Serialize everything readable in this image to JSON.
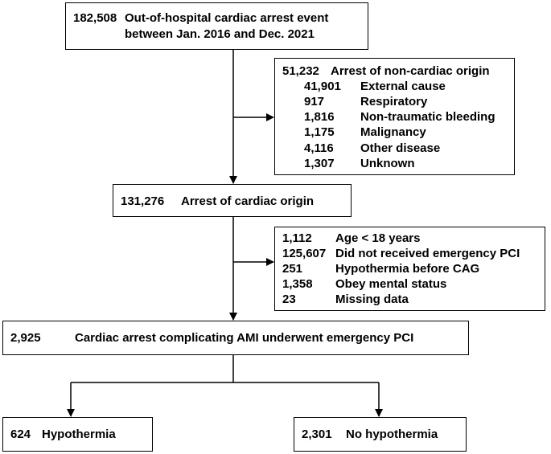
{
  "box_total": {
    "count": "182,508",
    "line1": "Out-of-hospital cardiac arrest event",
    "line2": "between Jan. 2016 and Dec. 2021"
  },
  "box_noncardiac": {
    "count": "51,232",
    "label": "Arrest of non-cardiac origin",
    "items": [
      {
        "count": "41,901",
        "label": "External cause"
      },
      {
        "count": "917",
        "label": "Respiratory"
      },
      {
        "count": "1,816",
        "label": "Non-traumatic bleeding"
      },
      {
        "count": "1,175",
        "label": "Malignancy"
      },
      {
        "count": "4,116",
        "label": "Other disease"
      },
      {
        "count": "1,307",
        "label": "Unknown"
      }
    ]
  },
  "box_cardiac": {
    "count": "131,276",
    "label": "Arrest of cardiac origin"
  },
  "box_exclusions": {
    "items": [
      {
        "count": "1,112",
        "label": "Age < 18 years"
      },
      {
        "count": "125,607",
        "label": "Did not received emergency PCI"
      },
      {
        "count": "251",
        "label": "Hypothermia before CAG"
      },
      {
        "count": "1,358",
        "label": "Obey mental status"
      },
      {
        "count": "23",
        "label": "Missing data"
      }
    ]
  },
  "box_ami": {
    "count": "2,925",
    "label": "Cardiac arrest complicating AMI underwent emergency PCI"
  },
  "box_hypothermia": {
    "count": "624",
    "label": "Hypothermia"
  },
  "box_no_hypothermia": {
    "count": "2,301",
    "label": "No hypothermia"
  }
}
